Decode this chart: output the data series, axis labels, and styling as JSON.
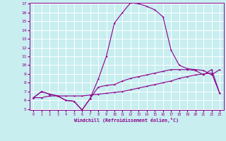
{
  "xlabel": "Windchill (Refroidissement éolien,°C)",
  "bg_color": "#c8eef0",
  "line_color": "#8b008b",
  "grid_color": "#ffffff",
  "x": [
    0,
    1,
    2,
    3,
    4,
    5,
    6,
    7,
    8,
    9,
    10,
    11,
    12,
    13,
    14,
    15,
    16,
    17,
    18,
    19,
    20,
    21,
    22,
    23
  ],
  "line1": [
    6.3,
    7.0,
    6.7,
    6.5,
    6.0,
    5.9,
    4.9,
    6.2,
    7.5,
    7.7,
    7.8,
    8.2,
    8.5,
    8.7,
    8.9,
    9.1,
    9.3,
    9.5,
    9.5,
    9.5,
    9.4,
    8.9,
    9.5,
    6.8
  ],
  "line2": [
    6.3,
    7.0,
    6.7,
    6.5,
    6.0,
    5.9,
    4.9,
    6.2,
    8.4,
    11.0,
    14.8,
    16.0,
    17.1,
    17.0,
    16.7,
    16.3,
    15.5,
    11.7,
    10.0,
    9.6,
    9.5,
    9.4,
    8.9,
    9.5
  ],
  "line3": [
    6.3,
    6.3,
    6.5,
    6.5,
    6.5,
    6.5,
    6.5,
    6.6,
    6.7,
    6.8,
    6.9,
    7.0,
    7.2,
    7.4,
    7.6,
    7.8,
    8.0,
    8.2,
    8.5,
    8.7,
    8.9,
    9.0,
    9.1,
    6.8
  ],
  "ylim": [
    5,
    17
  ],
  "xlim": [
    -0.5,
    23.5
  ],
  "yticks": [
    5,
    6,
    7,
    8,
    9,
    10,
    11,
    12,
    13,
    14,
    15,
    16,
    17
  ],
  "xticks": [
    0,
    1,
    2,
    3,
    4,
    5,
    6,
    7,
    8,
    9,
    10,
    11,
    12,
    13,
    14,
    15,
    16,
    17,
    18,
    19,
    20,
    21,
    22,
    23
  ]
}
